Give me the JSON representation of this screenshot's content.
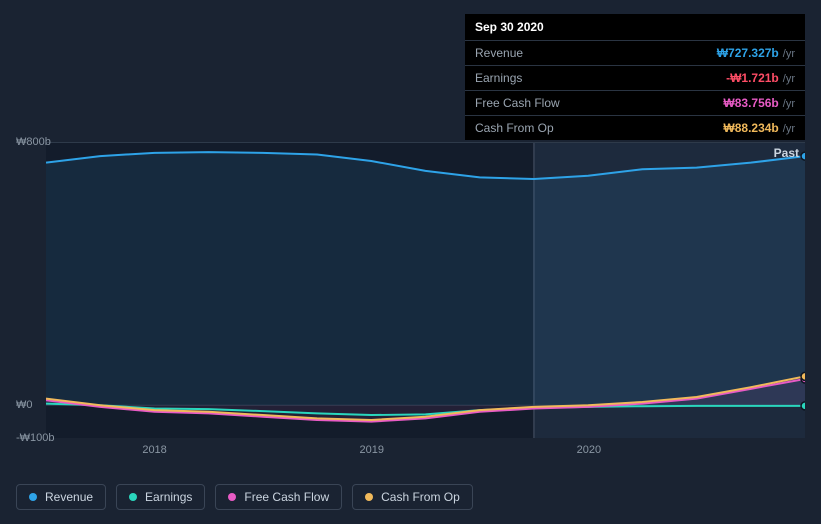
{
  "tooltip": {
    "date": "Sep 30 2020",
    "rows": [
      {
        "label": "Revenue",
        "value": "₩727.327b",
        "unit": "/yr",
        "color": "#2ea3e8"
      },
      {
        "label": "Earnings",
        "value": "-₩1.721b",
        "unit": "/yr",
        "color": "#ff4d66"
      },
      {
        "label": "Free Cash Flow",
        "value": "₩83.756b",
        "unit": "/yr",
        "color": "#e85bc5"
      },
      {
        "label": "Cash From Op",
        "value": "₩88.234b",
        "unit": "/yr",
        "color": "#f0b95b"
      }
    ]
  },
  "chart": {
    "type": "area",
    "past_label": "Past",
    "background": "#1a2332",
    "y_axis": {
      "ticks": [
        {
          "v": 800,
          "label": "₩800b"
        },
        {
          "v": 0,
          "label": "₩0"
        },
        {
          "v": -100,
          "label": "-₩100b"
        }
      ],
      "min": -100,
      "max": 800
    },
    "x_axis": {
      "domain_min": 2017.5,
      "domain_max": 2021.0,
      "ticks": [
        {
          "v": 2018,
          "label": "2018"
        },
        {
          "v": 2019,
          "label": "2019"
        },
        {
          "v": 2020,
          "label": "2020"
        }
      ],
      "highlight_from": 2019.75
    },
    "series": [
      {
        "name": "Revenue",
        "color": "#2ea3e8",
        "fill_opacity": 0.1,
        "points": [
          [
            2017.5,
            740
          ],
          [
            2017.75,
            760
          ],
          [
            2018.0,
            770
          ],
          [
            2018.25,
            772
          ],
          [
            2018.5,
            770
          ],
          [
            2018.75,
            765
          ],
          [
            2019.0,
            745
          ],
          [
            2019.25,
            715
          ],
          [
            2019.5,
            695
          ],
          [
            2019.75,
            690
          ],
          [
            2020.0,
            700
          ],
          [
            2020.25,
            720
          ],
          [
            2020.5,
            725
          ],
          [
            2020.75,
            740
          ],
          [
            2021.0,
            760
          ]
        ]
      },
      {
        "name": "Earnings",
        "color": "#2ad6bd",
        "fill_opacity": 0.0,
        "points": [
          [
            2017.5,
            5
          ],
          [
            2017.75,
            0
          ],
          [
            2018.0,
            -10
          ],
          [
            2018.25,
            -12
          ],
          [
            2018.5,
            -18
          ],
          [
            2018.75,
            -25
          ],
          [
            2019.0,
            -30
          ],
          [
            2019.25,
            -28
          ],
          [
            2019.5,
            -15
          ],
          [
            2019.75,
            -8
          ],
          [
            2020.0,
            -5
          ],
          [
            2020.25,
            -3
          ],
          [
            2020.5,
            -2
          ],
          [
            2020.75,
            -2
          ],
          [
            2021.0,
            -2
          ]
        ]
      },
      {
        "name": "Free Cash Flow",
        "color": "#e85bc5",
        "fill_opacity": 0.08,
        "points": [
          [
            2017.5,
            15
          ],
          [
            2017.75,
            -5
          ],
          [
            2018.0,
            -20
          ],
          [
            2018.25,
            -25
          ],
          [
            2018.5,
            -35
          ],
          [
            2018.75,
            -45
          ],
          [
            2019.0,
            -50
          ],
          [
            2019.25,
            -40
          ],
          [
            2019.5,
            -20
          ],
          [
            2019.75,
            -10
          ],
          [
            2020.0,
            -5
          ],
          [
            2020.25,
            5
          ],
          [
            2020.5,
            20
          ],
          [
            2020.75,
            50
          ],
          [
            2021.0,
            80
          ]
        ]
      },
      {
        "name": "Cash From Op",
        "color": "#f0b95b",
        "fill_opacity": 0.0,
        "points": [
          [
            2017.5,
            20
          ],
          [
            2017.75,
            0
          ],
          [
            2018.0,
            -15
          ],
          [
            2018.25,
            -20
          ],
          [
            2018.5,
            -30
          ],
          [
            2018.75,
            -40
          ],
          [
            2019.0,
            -45
          ],
          [
            2019.25,
            -35
          ],
          [
            2019.5,
            -15
          ],
          [
            2019.75,
            -5
          ],
          [
            2020.0,
            0
          ],
          [
            2020.25,
            10
          ],
          [
            2020.5,
            25
          ],
          [
            2020.75,
            55
          ],
          [
            2021.0,
            88
          ]
        ]
      }
    ],
    "legend": [
      {
        "label": "Revenue",
        "color": "#2ea3e8"
      },
      {
        "label": "Earnings",
        "color": "#2ad6bd"
      },
      {
        "label": "Free Cash Flow",
        "color": "#e85bc5"
      },
      {
        "label": "Cash From Op",
        "color": "#f0b95b"
      }
    ],
    "line_width": 2
  }
}
